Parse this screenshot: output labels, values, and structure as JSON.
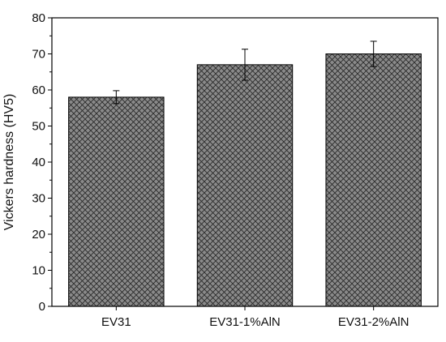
{
  "chart_data": {
    "type": "bar",
    "title": "",
    "xlabel": "",
    "ylabel": "Vickers hardness (HV5)",
    "categories": [
      "EV31",
      "EV31-1%AlN",
      "EV31-2%AlN"
    ],
    "values": [
      58,
      67,
      70
    ],
    "errors": [
      1.8,
      4.3,
      3.5
    ],
    "ylim": [
      0,
      80
    ],
    "yticks": [
      0,
      10,
      20,
      30,
      40,
      50,
      60,
      70,
      80
    ],
    "grid": false,
    "legend": "none",
    "colors": {
      "bar_fill": "#8a8a8a",
      "hatch": "#2a2a2a",
      "axis": "#000000",
      "background": "#ffffff"
    }
  }
}
